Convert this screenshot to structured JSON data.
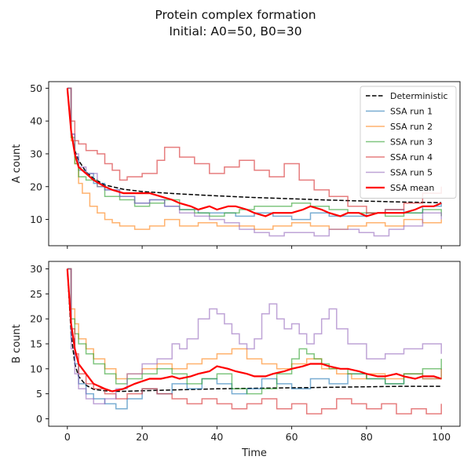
{
  "title_lines": [
    "Protein complex formation",
    "Initial: A0=50, B0=30"
  ],
  "colors": {
    "deterministic": "#000000",
    "run1": "#1f77b4",
    "run2": "#ff7f0e",
    "run3": "#2ca02c",
    "run4": "#d62728",
    "run5": "#9467bd",
    "mean": "#ff0000"
  },
  "legend": [
    {
      "label": "Deterministic",
      "color": "#000000",
      "dash": true,
      "width": 1.5,
      "opacity": 1
    },
    {
      "label": "SSA run 1",
      "color": "#1f77b4",
      "dash": false,
      "width": 1.5,
      "opacity": 0.6
    },
    {
      "label": "SSA run 2",
      "color": "#ff7f0e",
      "dash": false,
      "width": 1.5,
      "opacity": 0.6
    },
    {
      "label": "SSA run 3",
      "color": "#2ca02c",
      "dash": false,
      "width": 1.5,
      "opacity": 0.6
    },
    {
      "label": "SSA run 4",
      "color": "#d62728",
      "dash": false,
      "width": 1.5,
      "opacity": 0.6
    },
    {
      "label": "SSA run 5",
      "color": "#9467bd",
      "dash": false,
      "width": 1.5,
      "opacity": 0.6
    },
    {
      "label": "SSA mean",
      "color": "#ff0000",
      "dash": false,
      "width": 2.2,
      "opacity": 1
    }
  ],
  "chart_data": [
    {
      "type": "line",
      "ylabel": "A count",
      "xlabel": "",
      "xlim": [
        -5,
        105
      ],
      "ylim": [
        2,
        52
      ],
      "xticks": [
        0,
        20,
        40,
        60,
        80,
        100
      ],
      "yticks": [
        10,
        20,
        30,
        40,
        50
      ],
      "show_x_tick_labels": false,
      "legend_position": "upper-right",
      "series": [
        {
          "name": "Deterministic",
          "style": "dashed",
          "x": [
            0,
            1,
            2,
            3,
            5,
            7,
            10,
            15,
            20,
            30,
            40,
            50,
            60,
            70,
            80,
            90,
            100
          ],
          "y": [
            50,
            37,
            31,
            28,
            24.5,
            22.5,
            20.5,
            19.2,
            18.5,
            17.8,
            17.2,
            16.7,
            16.3,
            15.9,
            15.6,
            15.3,
            15.1
          ]
        },
        {
          "name": "SSA run 1",
          "style": "step",
          "x": [
            0,
            1,
            2,
            3,
            5,
            7,
            10,
            14,
            18,
            22,
            26,
            30,
            35,
            40,
            45,
            50,
            55,
            60,
            65,
            70,
            75,
            80,
            85,
            90,
            95,
            100
          ],
          "y": [
            50,
            36,
            29,
            25,
            24,
            21,
            19,
            17,
            15,
            16,
            14,
            13,
            12,
            12,
            11,
            12,
            11,
            10,
            12,
            11,
            11,
            12,
            13,
            12,
            14,
            15
          ]
        },
        {
          "name": "SSA run 2",
          "style": "step",
          "x": [
            0,
            1,
            2,
            3,
            4,
            6,
            8,
            10,
            12,
            14,
            18,
            22,
            26,
            30,
            35,
            40,
            45,
            50,
            55,
            60,
            65,
            70,
            75,
            80,
            85,
            90,
            95,
            100
          ],
          "y": [
            50,
            34,
            27,
            21,
            18,
            14,
            12,
            10,
            9,
            8,
            7,
            8,
            10,
            8,
            9,
            8,
            8,
            7,
            8,
            9,
            8,
            7,
            8,
            9,
            8,
            10,
            9,
            10
          ]
        },
        {
          "name": "SSA run 3",
          "style": "step",
          "x": [
            0,
            1,
            2,
            3,
            5,
            8,
            10,
            14,
            18,
            22,
            26,
            30,
            34,
            38,
            42,
            46,
            50,
            55,
            60,
            65,
            70,
            75,
            80,
            85,
            90,
            95,
            100
          ],
          "y": [
            50,
            35,
            27,
            23,
            22,
            20,
            17,
            16,
            14,
            15,
            16,
            13,
            12,
            11,
            12,
            13,
            14,
            14,
            15,
            14,
            13,
            12,
            12,
            11,
            12,
            13,
            11
          ]
        },
        {
          "name": "SSA run 4",
          "style": "step",
          "x": [
            0,
            1,
            2,
            3,
            5,
            8,
            10,
            12,
            14,
            16,
            20,
            24,
            26,
            30,
            34,
            38,
            42,
            46,
            50,
            54,
            58,
            62,
            66,
            70,
            75,
            80,
            85,
            90,
            95,
            100
          ],
          "y": [
            50,
            40,
            34,
            33,
            31,
            30,
            27,
            25,
            22,
            23,
            24,
            28,
            32,
            29,
            27,
            24,
            26,
            28,
            25,
            23,
            27,
            22,
            19,
            17,
            14,
            12,
            13,
            15,
            18,
            20
          ]
        },
        {
          "name": "SSA run 5",
          "style": "step",
          "x": [
            0,
            1,
            2,
            3,
            5,
            8,
            10,
            14,
            18,
            22,
            26,
            30,
            34,
            38,
            42,
            46,
            50,
            54,
            58,
            62,
            66,
            70,
            74,
            78,
            82,
            86,
            90,
            95,
            100
          ],
          "y": [
            50,
            36,
            30,
            26,
            24,
            20,
            19,
            17,
            15,
            16,
            14,
            12,
            11,
            10,
            9,
            7,
            6,
            5,
            6,
            6,
            5,
            7,
            7,
            6,
            5,
            7,
            8,
            12,
            10
          ]
        },
        {
          "name": "SSA mean",
          "style": "line",
          "x": [
            0,
            1,
            2,
            3,
            5,
            7,
            10,
            12,
            15,
            18,
            20,
            22,
            25,
            28,
            30,
            33,
            35,
            38,
            40,
            43,
            45,
            48,
            50,
            53,
            55,
            58,
            60,
            63,
            65,
            68,
            70,
            73,
            75,
            78,
            80,
            83,
            85,
            88,
            90,
            93,
            95,
            98,
            100
          ],
          "y": [
            50,
            37,
            30,
            26,
            24,
            22,
            20,
            19,
            18,
            18,
            18,
            18,
            17,
            16,
            15,
            14,
            13,
            14,
            13,
            14,
            14,
            13,
            12,
            11,
            12,
            12,
            12,
            13,
            14,
            13,
            12,
            11,
            12,
            12,
            11,
            12,
            12,
            12,
            12,
            13,
            14,
            14,
            15
          ]
        }
      ]
    },
    {
      "type": "line",
      "ylabel": "B count",
      "xlabel": "Time",
      "xlim": [
        -5,
        105
      ],
      "ylim": [
        -1.5,
        31.5
      ],
      "xticks": [
        0,
        20,
        40,
        60,
        80,
        100
      ],
      "yticks": [
        0,
        5,
        10,
        15,
        20,
        25,
        30
      ],
      "show_x_tick_labels": true,
      "series": [
        {
          "name": "Deterministic",
          "style": "dashed",
          "x": [
            0,
            1,
            2,
            3,
            5,
            7,
            10,
            13,
            15,
            20,
            30,
            40,
            50,
            60,
            70,
            80,
            90,
            100
          ],
          "y": [
            30,
            17,
            11,
            8.5,
            6.7,
            5.9,
            5.6,
            5.5,
            5.5,
            5.6,
            5.8,
            6.0,
            6.1,
            6.2,
            6.3,
            6.4,
            6.5,
            6.5
          ]
        },
        {
          "name": "SSA run 1",
          "style": "step",
          "x": [
            0,
            1,
            2,
            3,
            5,
            7,
            10,
            13,
            16,
            20,
            24,
            28,
            32,
            36,
            40,
            44,
            48,
            52,
            56,
            60,
            65,
            70,
            75,
            80,
            85,
            90,
            95,
            100
          ],
          "y": [
            30,
            16,
            11,
            7,
            5,
            4,
            3,
            2,
            4,
            6,
            5,
            7,
            6,
            8,
            7,
            5,
            6,
            8,
            7,
            6,
            8,
            7,
            9,
            8,
            7,
            9,
            8,
            10
          ]
        },
        {
          "name": "SSA run 2",
          "style": "step",
          "x": [
            0,
            1,
            2,
            3,
            5,
            7,
            10,
            13,
            16,
            20,
            24,
            28,
            32,
            36,
            40,
            44,
            48,
            52,
            56,
            60,
            64,
            68,
            72,
            76,
            80,
            85,
            90,
            95,
            100
          ],
          "y": [
            30,
            22,
            19,
            16,
            14,
            12,
            10,
            8,
            9,
            10,
            11,
            10,
            11,
            12,
            13,
            14,
            12,
            11,
            10,
            11,
            12,
            10,
            9,
            8,
            9,
            8,
            9,
            8,
            10
          ]
        },
        {
          "name": "SSA run 3",
          "style": "step",
          "x": [
            0,
            1,
            2,
            3,
            5,
            7,
            10,
            13,
            16,
            20,
            24,
            28,
            32,
            36,
            40,
            44,
            48,
            52,
            56,
            60,
            62,
            64,
            66,
            68,
            70,
            75,
            80,
            85,
            90,
            95,
            100
          ],
          "y": [
            30,
            20,
            17,
            15,
            13,
            11,
            9,
            7,
            8,
            9,
            10,
            9,
            7,
            8,
            9,
            6,
            5,
            6,
            9,
            12,
            14,
            13,
            12,
            11,
            10,
            9,
            8,
            7,
            9,
            10,
            12
          ]
        },
        {
          "name": "SSA run 4",
          "style": "step",
          "x": [
            0,
            1,
            2,
            3,
            5,
            7,
            10,
            13,
            16,
            20,
            24,
            28,
            32,
            36,
            40,
            44,
            48,
            52,
            56,
            60,
            64,
            68,
            72,
            76,
            80,
            84,
            88,
            92,
            96,
            100
          ],
          "y": [
            30,
            18,
            13,
            9,
            7,
            6,
            5,
            4,
            5,
            6,
            5,
            4,
            3,
            4,
            3,
            2,
            3,
            4,
            2,
            3,
            1,
            2,
            4,
            3,
            2,
            3,
            1,
            2,
            1,
            3
          ]
        },
        {
          "name": "SSA run 5",
          "style": "step",
          "x": [
            0,
            1,
            2,
            3,
            5,
            7,
            10,
            13,
            16,
            20,
            24,
            28,
            30,
            32,
            35,
            38,
            40,
            42,
            44,
            46,
            48,
            50,
            52,
            54,
            56,
            58,
            60,
            62,
            64,
            66,
            68,
            70,
            72,
            75,
            80,
            85,
            90,
            95,
            100
          ],
          "y": [
            30,
            14,
            9,
            6,
            4,
            3,
            4,
            6,
            9,
            11,
            12,
            15,
            14,
            16,
            20,
            22,
            21,
            19,
            17,
            15,
            14,
            16,
            21,
            23,
            20,
            18,
            19,
            17,
            15,
            17,
            20,
            22,
            18,
            15,
            12,
            13,
            14,
            15,
            13
          ]
        },
        {
          "name": "SSA mean",
          "style": "line",
          "x": [
            0,
            1,
            2,
            3,
            5,
            7,
            10,
            12,
            15,
            18,
            20,
            22,
            25,
            28,
            30,
            33,
            35,
            38,
            40,
            43,
            45,
            48,
            50,
            53,
            55,
            58,
            60,
            63,
            65,
            68,
            70,
            73,
            75,
            78,
            80,
            83,
            85,
            88,
            90,
            93,
            95,
            98,
            100
          ],
          "y": [
            30,
            19,
            14,
            11,
            9,
            7,
            6,
            5.5,
            6,
            7,
            7.5,
            8,
            8,
            8.5,
            8,
            8.5,
            9,
            9.5,
            10.5,
            10,
            9.5,
            9,
            8.5,
            8.5,
            9,
            9.5,
            10,
            10.5,
            11,
            11,
            10.5,
            10,
            10,
            9.5,
            9,
            8.5,
            8.5,
            9,
            8.5,
            8,
            8.5,
            8.5,
            8
          ]
        }
      ]
    }
  ]
}
